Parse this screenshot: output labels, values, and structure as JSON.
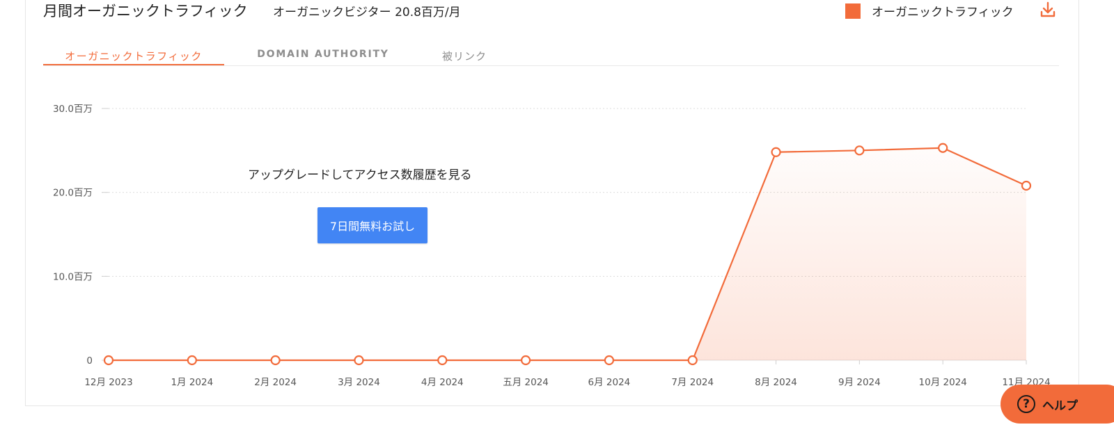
{
  "header": {
    "title": "月間オーガニックトラフィック",
    "visitors": "オーガニックビジター 20.8百万/月",
    "legend_label": "オーガニックトラフィック",
    "download_icon": "download-icon"
  },
  "tabs": [
    {
      "label": "オーガニックトラフィック",
      "active": true
    },
    {
      "label": "DOMAIN AUTHORITY",
      "active": false
    },
    {
      "label": "被リンク",
      "active": false
    }
  ],
  "overlay": {
    "upgrade_text": "アップグレードしてアクセス数履歴を見る",
    "trial_button": "7日間無料お試し"
  },
  "help": {
    "label": "ヘルプ",
    "icon": "question-icon"
  },
  "colors": {
    "accent": "#f26b3a",
    "button": "#4285f4"
  },
  "chart_data": {
    "type": "area",
    "x": [
      "12月 2023",
      "1月 2024",
      "2月 2024",
      "3月 2024",
      "4月 2024",
      "五月 2024",
      "6月 2024",
      "7月 2024",
      "8月 2024",
      "9月 2024",
      "10月 2024",
      "11月 2024"
    ],
    "series": [
      {
        "name": "オーガニックトラフィック",
        "values": [
          0,
          0,
          0,
          0,
          0,
          0,
          0,
          0,
          24.8,
          25.0,
          25.3,
          20.8
        ]
      }
    ],
    "yticks": [
      0,
      10,
      20,
      30
    ],
    "ytick_labels": [
      "0",
      "10.0百万",
      "20.0百万",
      "30.0百万"
    ],
    "ylim": [
      0,
      30
    ],
    "grid": true,
    "legend": "top-right"
  }
}
